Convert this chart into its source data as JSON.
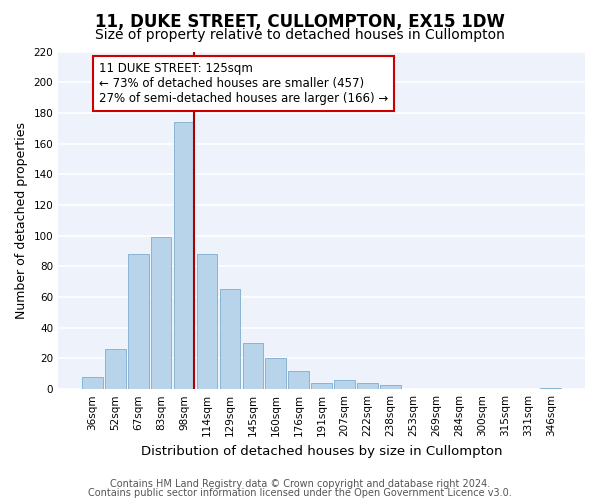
{
  "title": "11, DUKE STREET, CULLOMPTON, EX15 1DW",
  "subtitle": "Size of property relative to detached houses in Cullompton",
  "xlabel": "Distribution of detached houses by size in Cullompton",
  "ylabel": "Number of detached properties",
  "bar_color": "#b8d4ea",
  "bar_edge_color": "#8ab4d4",
  "background_color": "#eef2fa",
  "grid_color": "white",
  "bins": [
    "36sqm",
    "52sqm",
    "67sqm",
    "83sqm",
    "98sqm",
    "114sqm",
    "129sqm",
    "145sqm",
    "160sqm",
    "176sqm",
    "191sqm",
    "207sqm",
    "222sqm",
    "238sqm",
    "253sqm",
    "269sqm",
    "284sqm",
    "300sqm",
    "315sqm",
    "331sqm",
    "346sqm"
  ],
  "values": [
    8,
    26,
    88,
    99,
    174,
    88,
    65,
    30,
    20,
    12,
    4,
    6,
    4,
    3,
    0,
    0,
    0,
    0,
    0,
    0,
    1
  ],
  "ylim": [
    0,
    220
  ],
  "yticks": [
    0,
    20,
    40,
    60,
    80,
    100,
    120,
    140,
    160,
    180,
    200,
    220
  ],
  "property_label": "11 DUKE STREET: 125sqm",
  "annotation_line1": "← 73% of detached houses are smaller (457)",
  "annotation_line2": "27% of semi-detached houses are larger (166) →",
  "vline_color": "#aa0000",
  "annotation_box_edge": "#cc0000",
  "footer_line1": "Contains HM Land Registry data © Crown copyright and database right 2024.",
  "footer_line2": "Contains public sector information licensed under the Open Government Licence v3.0.",
  "title_fontsize": 12,
  "subtitle_fontsize": 10,
  "xlabel_fontsize": 9.5,
  "ylabel_fontsize": 9,
  "tick_fontsize": 7.5,
  "footer_fontsize": 7,
  "annotation_fontsize": 8.5
}
